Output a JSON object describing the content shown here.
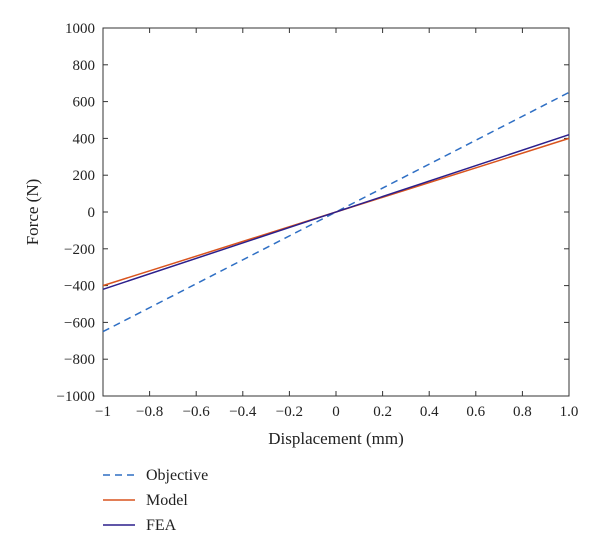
{
  "chart_data": {
    "type": "line",
    "title": "",
    "xlabel": "Displacement (mm)",
    "ylabel": "Force (N)",
    "xlim": [
      -1,
      1
    ],
    "ylim": [
      -1000,
      1000
    ],
    "x_ticks": [
      -1,
      -0.8,
      -0.6,
      -0.4,
      -0.2,
      0,
      0.2,
      0.4,
      0.6,
      0.8,
      1.0
    ],
    "x_tick_labels": [
      "−1",
      "−0.8",
      "−0.6",
      "−0.4",
      "−0.2",
      "0",
      "0.2",
      "0.4",
      "0.6",
      "0.8",
      "1.0"
    ],
    "y_ticks": [
      -1000,
      -800,
      -600,
      -400,
      -200,
      0,
      200,
      400,
      600,
      800,
      1000
    ],
    "y_tick_labels": [
      "−1000",
      "−800",
      "−600",
      "−400",
      "−200",
      "0",
      "200",
      "400",
      "600",
      "800",
      "1000"
    ],
    "grid": false,
    "legend_position": "bottom",
    "series": [
      {
        "name": "Objective",
        "x": [
          -1,
          1
        ],
        "y": [
          -650,
          650
        ],
        "color": "#2f6fc4",
        "dash": true
      },
      {
        "name": "Model",
        "x": [
          -1,
          1
        ],
        "y": [
          -400,
          400
        ],
        "color": "#d9541e",
        "dash": false
      },
      {
        "name": "FEA",
        "x": [
          -1,
          1
        ],
        "y": [
          -420,
          420
        ],
        "color": "#2b1f8c",
        "dash": false
      }
    ]
  }
}
